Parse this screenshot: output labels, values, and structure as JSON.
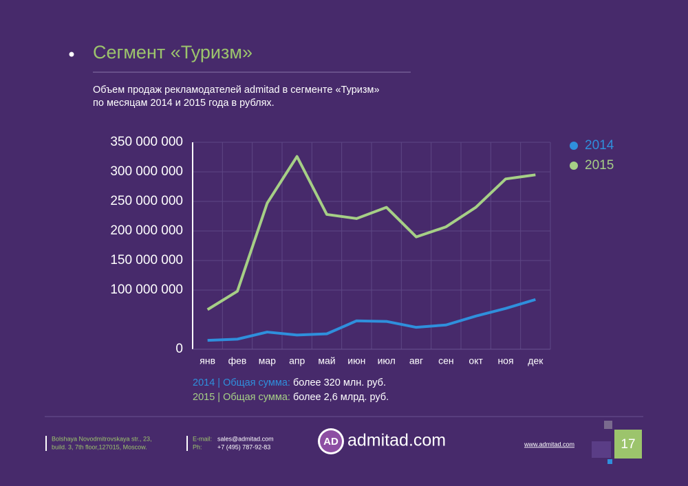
{
  "header": {
    "title": "Сегмент «Туризм»",
    "subtitle": [
      "Объем продаж рекламодателей admitad в сегменте «Туризм»",
      "по месяцам 2014 и 2015 года в рублях."
    ]
  },
  "chart_data": {
    "type": "line",
    "categories": [
      "янв",
      "фев",
      "мар",
      "апр",
      "май",
      "июн",
      "июл",
      "авг",
      "сен",
      "окт",
      "ноя",
      "дек"
    ],
    "series": [
      {
        "name": "2014",
        "color": "#2f8fdc",
        "values": [
          15000000,
          17000000,
          29000000,
          24000000,
          26000000,
          48000000,
          47000000,
          37000000,
          41000000,
          56000000,
          69000000,
          84000000
        ]
      },
      {
        "name": "2015",
        "color": "#a6cf86",
        "values": [
          67000000,
          98000000,
          247000000,
          326000000,
          228000000,
          221000000,
          240000000,
          190000000,
          207000000,
          240000000,
          288000000,
          295000000
        ]
      }
    ],
    "ylim": [
      0,
      350000000
    ],
    "yticks": [
      {
        "value": 0,
        "label": "0"
      },
      {
        "value": 100000000,
        "label": "100 000 000"
      },
      {
        "value": 150000000,
        "label": "150 000 000"
      },
      {
        "value": 200000000,
        "label": "200 000 000"
      },
      {
        "value": 250000000,
        "label": "250 000 000"
      },
      {
        "value": 300000000,
        "label": "300 000 000"
      },
      {
        "value": 350000000,
        "label": "350 000 000"
      }
    ],
    "grid": true,
    "legend": "top-right"
  },
  "summary": [
    {
      "label": "2014 | Общая сумма:",
      "text": "более 320 млн. руб."
    },
    {
      "label": "2015 | Общая сумма:",
      "text": "более 2,6 млрд. руб."
    }
  ],
  "footer": {
    "address": [
      "Bolshaya Novodmitrovskaya str., 23,",
      "build. 3, 7th floor,127015, Moscow."
    ],
    "email_label": "E-mail:",
    "email": "sales@admitad.com",
    "phone_label": "Ph:",
    "phone": "+7 (495) 787-92-83",
    "logo_mark": "AD",
    "logo": "admitad.com",
    "site": "www.admitad.com",
    "page": "17"
  }
}
